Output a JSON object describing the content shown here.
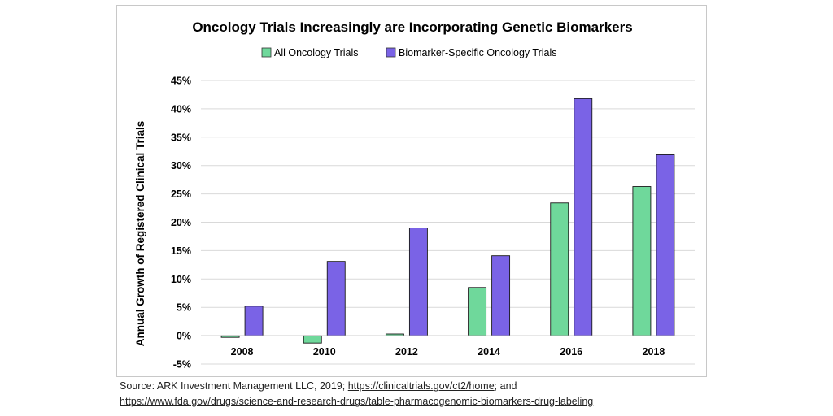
{
  "chart_data": {
    "type": "bar",
    "title": "Oncology Trials Increasingly are Incorporating Genetic Biomarkers",
    "xlabel": "",
    "ylabel": "Annual Growth of Registered Clinical Trials",
    "categories": [
      "2008",
      "2010",
      "2012",
      "2014",
      "2016",
      "2018"
    ],
    "series": [
      {
        "name": "All Oncology Trials",
        "color": "#6fd89b",
        "values": [
          -0.3,
          -1.3,
          0.3,
          8.5,
          23.4,
          26.3
        ]
      },
      {
        "name": "Biomarker-Specific Oncology Trials",
        "color": "#7a63e6",
        "values": [
          5.2,
          13.1,
          19.0,
          14.1,
          41.8,
          31.9
        ]
      }
    ],
    "ylim": [
      -5,
      45
    ],
    "yticks": [
      -5,
      0,
      5,
      10,
      15,
      20,
      25,
      30,
      35,
      40,
      45
    ],
    "ytick_format": "percent",
    "grid": true,
    "legend": "top-center"
  },
  "source": {
    "prefix": "Source: ARK Investment Management LLC, 2019; ",
    "link1": "https://clinicaltrials.gov/ct2/home",
    "middle": "; and",
    "link2": "https://www.fda.gov/drugs/science-and-research-drugs/table-pharmacogenomic-biomarkers-drug-labeling"
  }
}
